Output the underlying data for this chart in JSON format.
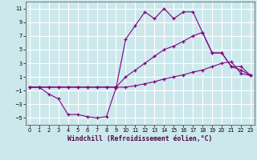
{
  "xlabel": "Windchill (Refroidissement éolien,°C)",
  "bg_color": "#cce8ed",
  "grid_color": "#ffffff",
  "line_color": "#800080",
  "x": [
    0,
    1,
    2,
    3,
    4,
    5,
    6,
    7,
    8,
    9,
    10,
    11,
    12,
    13,
    14,
    15,
    16,
    17,
    18,
    19,
    20,
    21,
    22,
    23
  ],
  "line1": [
    -0.5,
    -0.5,
    -1.5,
    -2.2,
    -4.5,
    -4.5,
    -4.8,
    -5.0,
    -4.8,
    -0.6,
    6.5,
    8.5,
    10.5,
    9.5,
    11.0,
    9.5,
    10.5,
    10.5,
    7.5,
    4.5,
    4.5,
    2.5,
    2.5,
    1.2
  ],
  "line2": [
    -0.5,
    -0.5,
    -0.5,
    -0.5,
    -0.5,
    -0.5,
    -0.5,
    -0.5,
    -0.5,
    -0.5,
    1.0,
    2.0,
    3.0,
    4.0,
    5.0,
    5.5,
    6.2,
    7.0,
    7.5,
    4.5,
    4.5,
    2.5,
    2.0,
    1.2
  ],
  "line3": [
    -0.5,
    -0.5,
    -0.5,
    -0.5,
    -0.5,
    -0.5,
    -0.5,
    -0.5,
    -0.5,
    -0.5,
    -0.5,
    -0.3,
    0.0,
    0.3,
    0.7,
    1.0,
    1.3,
    1.7,
    2.0,
    2.5,
    3.0,
    3.2,
    1.5,
    1.2
  ],
  "ylim": [
    -6,
    12
  ],
  "xlim": [
    -0.4,
    23.4
  ],
  "yticks": [
    -5,
    -3,
    -1,
    1,
    3,
    5,
    7,
    9,
    11
  ],
  "xticks": [
    0,
    1,
    2,
    3,
    4,
    5,
    6,
    7,
    8,
    9,
    10,
    11,
    12,
    13,
    14,
    15,
    16,
    17,
    18,
    19,
    20,
    21,
    22,
    23
  ],
  "tick_fontsize": 4.8,
  "xlabel_fontsize": 5.8
}
